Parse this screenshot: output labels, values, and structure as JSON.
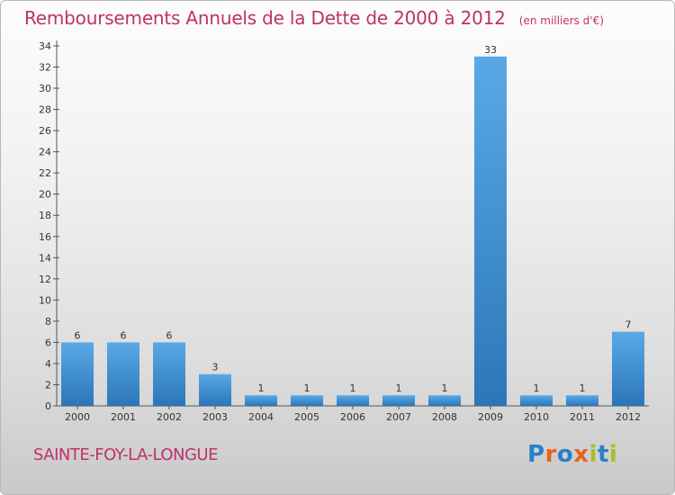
{
  "title": "Remboursements Annuels de la Dette de 2000 à 2012",
  "unit": "(en milliers d'€)",
  "commune": "SAINTE-FOY-LA-LONGUE",
  "logo": {
    "text": "Proxiti",
    "letters": [
      {
        "char": "P",
        "color": "#2c7fc9"
      },
      {
        "char": "r",
        "color": "#e8631a"
      },
      {
        "char": "o",
        "color": "#2c7fc9"
      },
      {
        "char": "x",
        "color": "#e8631a"
      },
      {
        "char": "i",
        "color": "#a2c226"
      },
      {
        "char": "t",
        "color": "#2c7fc9"
      },
      {
        "char": "i",
        "color": "#a2c226"
      }
    ]
  },
  "colors": {
    "title": "#c0306b",
    "bar_light": "#5aa9e6",
    "bar_dark": "#2b76b8"
  },
  "chart_data": {
    "type": "bar",
    "categories": [
      "2000",
      "2001",
      "2002",
      "2003",
      "2004",
      "2005",
      "2006",
      "2007",
      "2008",
      "2009",
      "2010",
      "2011",
      "2012"
    ],
    "values": [
      6,
      6,
      6,
      3,
      1,
      1,
      1,
      1,
      1,
      33,
      1,
      1,
      7
    ],
    "data_labels": [
      "6",
      "6",
      "6",
      "3",
      "1",
      "1",
      "1",
      "1",
      "1",
      "33",
      "1",
      "1",
      "7"
    ],
    "y_ticks": [
      0,
      2,
      4,
      6,
      8,
      10,
      12,
      14,
      16,
      18,
      20,
      22,
      24,
      26,
      28,
      30,
      32,
      34
    ],
    "ylim": [
      0,
      34
    ],
    "title": "Remboursements Annuels de la Dette de 2000 à 2012",
    "xlabel": "",
    "ylabel": "",
    "grid": false,
    "legend": "none"
  }
}
